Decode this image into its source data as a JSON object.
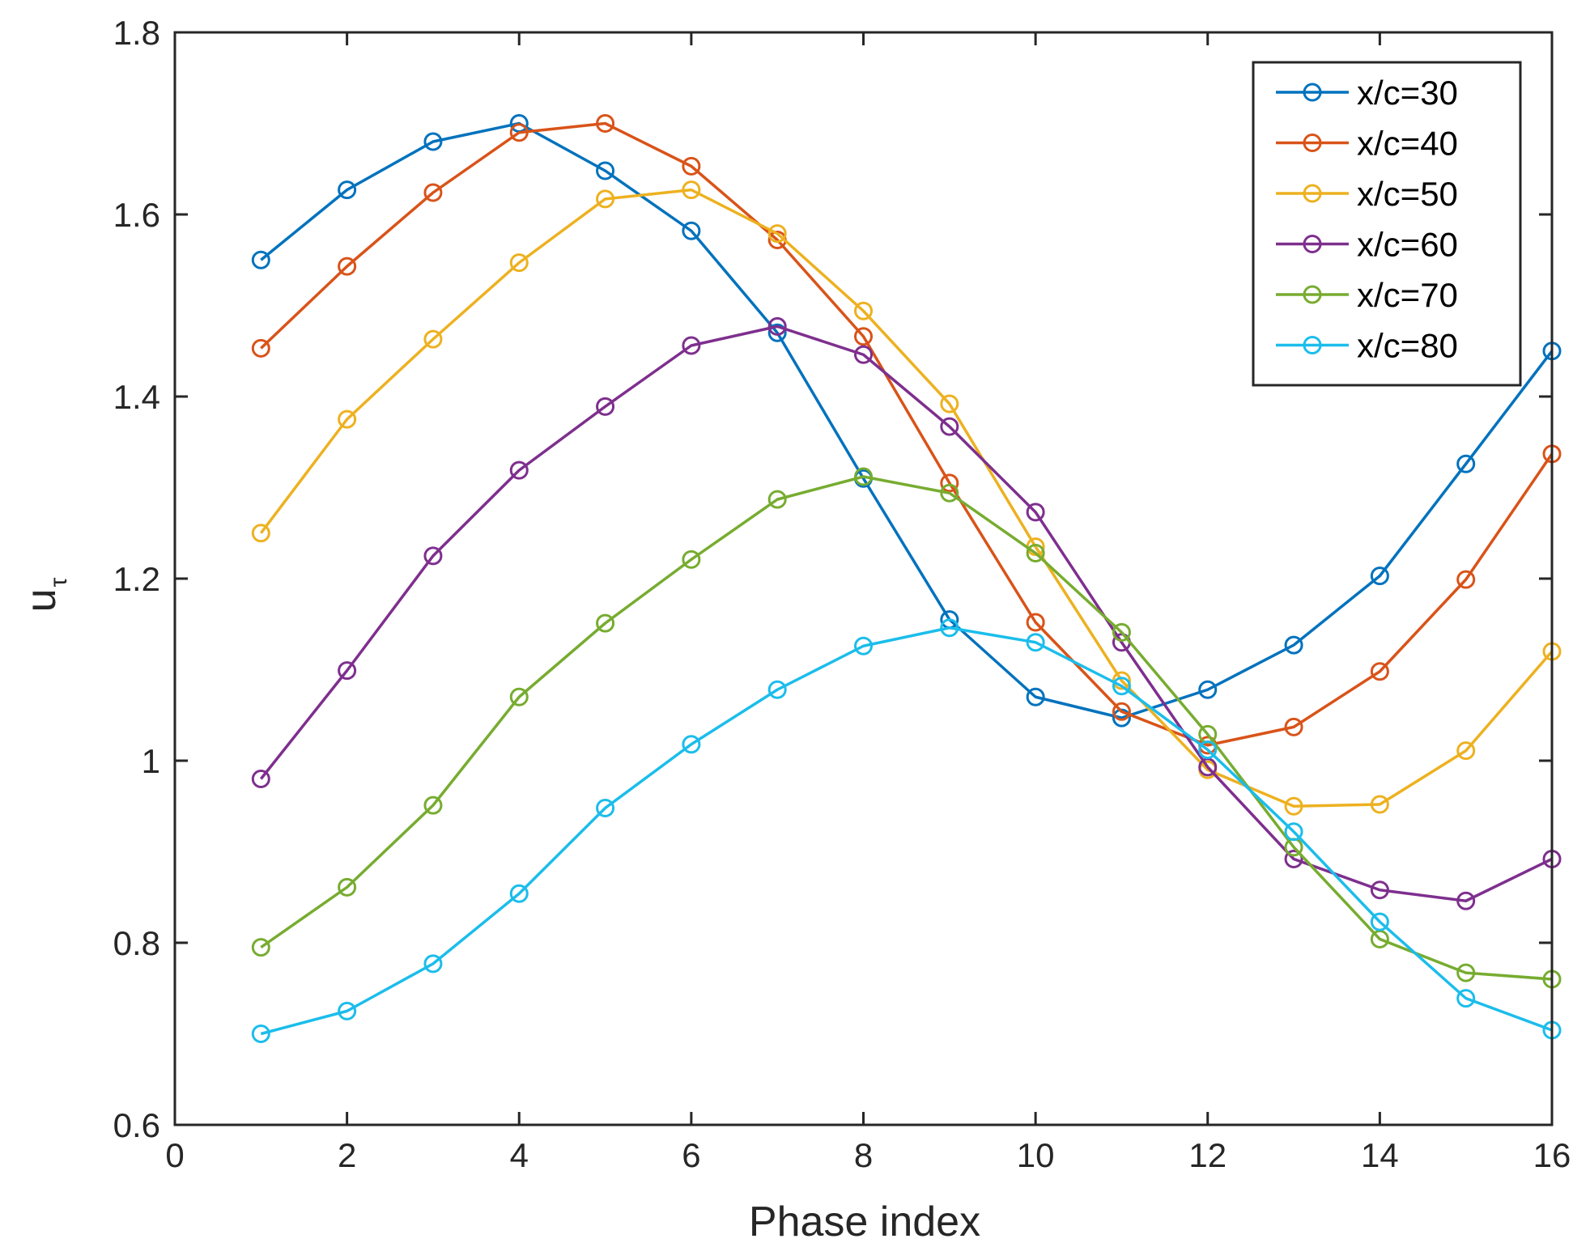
{
  "chart_data": {
    "type": "line",
    "title": "",
    "xlabel": "Phase index",
    "ylabel": "u",
    "ylabel_subscript": "τ",
    "xlim": [
      0,
      16
    ],
    "ylim": [
      0.6,
      1.8
    ],
    "xticks": [
      0,
      2,
      4,
      6,
      8,
      10,
      12,
      14,
      16
    ],
    "yticks": [
      0.6,
      0.8,
      1,
      1.2,
      1.4,
      1.6,
      1.8
    ],
    "ytick_labels": [
      "0.6",
      "0.8",
      "1",
      "1.2",
      "1.4",
      "1.6",
      "1.8"
    ],
    "grid": false,
    "legend_position": "top-right",
    "marker": "circle",
    "x": [
      1,
      2,
      3,
      4,
      5,
      6,
      7,
      8,
      9,
      10,
      11,
      12,
      13,
      14,
      15,
      16
    ],
    "series": [
      {
        "name": "x/c=30",
        "color": "#0072BD",
        "values": [
          1.55,
          1.627,
          1.68,
          1.7,
          1.648,
          1.582,
          1.47,
          1.31,
          1.155,
          1.07,
          1.047,
          1.078,
          1.127,
          1.203,
          1.326,
          1.45
        ]
      },
      {
        "name": "x/c=40",
        "color": "#D95319",
        "values": [
          1.453,
          1.543,
          1.624,
          1.69,
          1.7,
          1.653,
          1.572,
          1.466,
          1.305,
          1.152,
          1.054,
          1.017,
          1.037,
          1.098,
          1.199,
          1.337
        ]
      },
      {
        "name": "x/c=50",
        "color": "#EDB120",
        "values": [
          1.25,
          1.375,
          1.463,
          1.547,
          1.617,
          1.627,
          1.579,
          1.494,
          1.392,
          1.235,
          1.088,
          0.99,
          0.95,
          0.952,
          1.011,
          1.12
        ]
      },
      {
        "name": "x/c=60",
        "color": "#7E2F8E",
        "values": [
          0.98,
          1.099,
          1.225,
          1.319,
          1.389,
          1.456,
          1.477,
          1.446,
          1.367,
          1.273,
          1.13,
          0.993,
          0.892,
          0.858,
          0.846,
          0.892
        ]
      },
      {
        "name": "x/c=70",
        "color": "#77AC30",
        "values": [
          0.795,
          0.861,
          0.951,
          1.07,
          1.151,
          1.221,
          1.287,
          1.312,
          1.294,
          1.228,
          1.141,
          1.029,
          0.905,
          0.804,
          0.767,
          0.76
        ]
      },
      {
        "name": "x/c=80",
        "color": "#1BBDEB",
        "values": [
          0.7,
          0.725,
          0.777,
          0.854,
          0.948,
          1.018,
          1.078,
          1.126,
          1.146,
          1.13,
          1.082,
          1.012,
          0.922,
          0.823,
          0.739,
          0.704
        ]
      }
    ]
  }
}
